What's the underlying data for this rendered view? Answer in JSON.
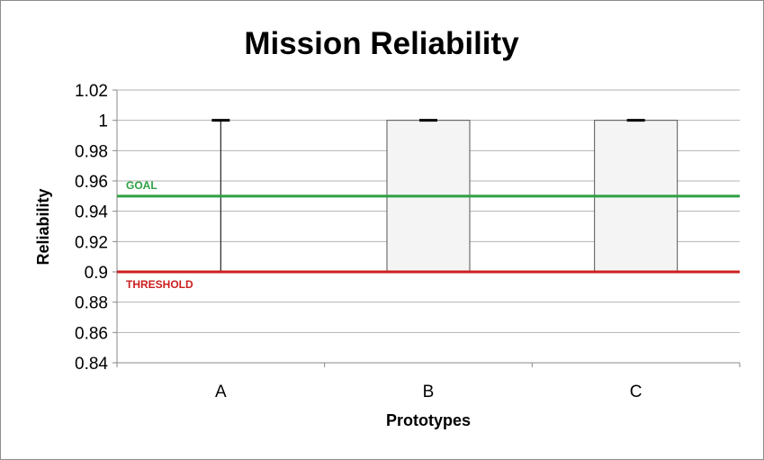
{
  "chart_data": {
    "type": "bar",
    "title": "Mission Reliability",
    "xlabel": "Prototypes",
    "ylabel": "Reliability",
    "ylim": [
      0.84,
      1.02
    ],
    "yticks": [
      0.84,
      0.86,
      0.88,
      0.9,
      0.92,
      0.94,
      0.96,
      0.98,
      1,
      1.02
    ],
    "ytick_labels": [
      "0.84",
      "0.86",
      "0.88",
      "0.9",
      "0.92",
      "0.94",
      "0.96",
      "0.98",
      "1",
      "1.02"
    ],
    "grid": true,
    "categories": [
      "A",
      "B",
      "C"
    ],
    "ranges": [
      {
        "category": "A",
        "low": 0.9,
        "high": 1.0,
        "box": false
      },
      {
        "category": "B",
        "low": 0.9,
        "high": 1.0,
        "box": true
      },
      {
        "category": "C",
        "low": 0.9,
        "high": 1.0,
        "box": true
      }
    ],
    "reference_lines": [
      {
        "label": "GOAL",
        "value": 0.95,
        "color": "#2ea043"
      },
      {
        "label": "THRESHOLD",
        "value": 0.9,
        "color": "#cc1f1f"
      }
    ],
    "colors": {
      "box_fill": "#f4f4f4",
      "box_stroke": "#555555",
      "grid": "#b3b3b3"
    }
  }
}
